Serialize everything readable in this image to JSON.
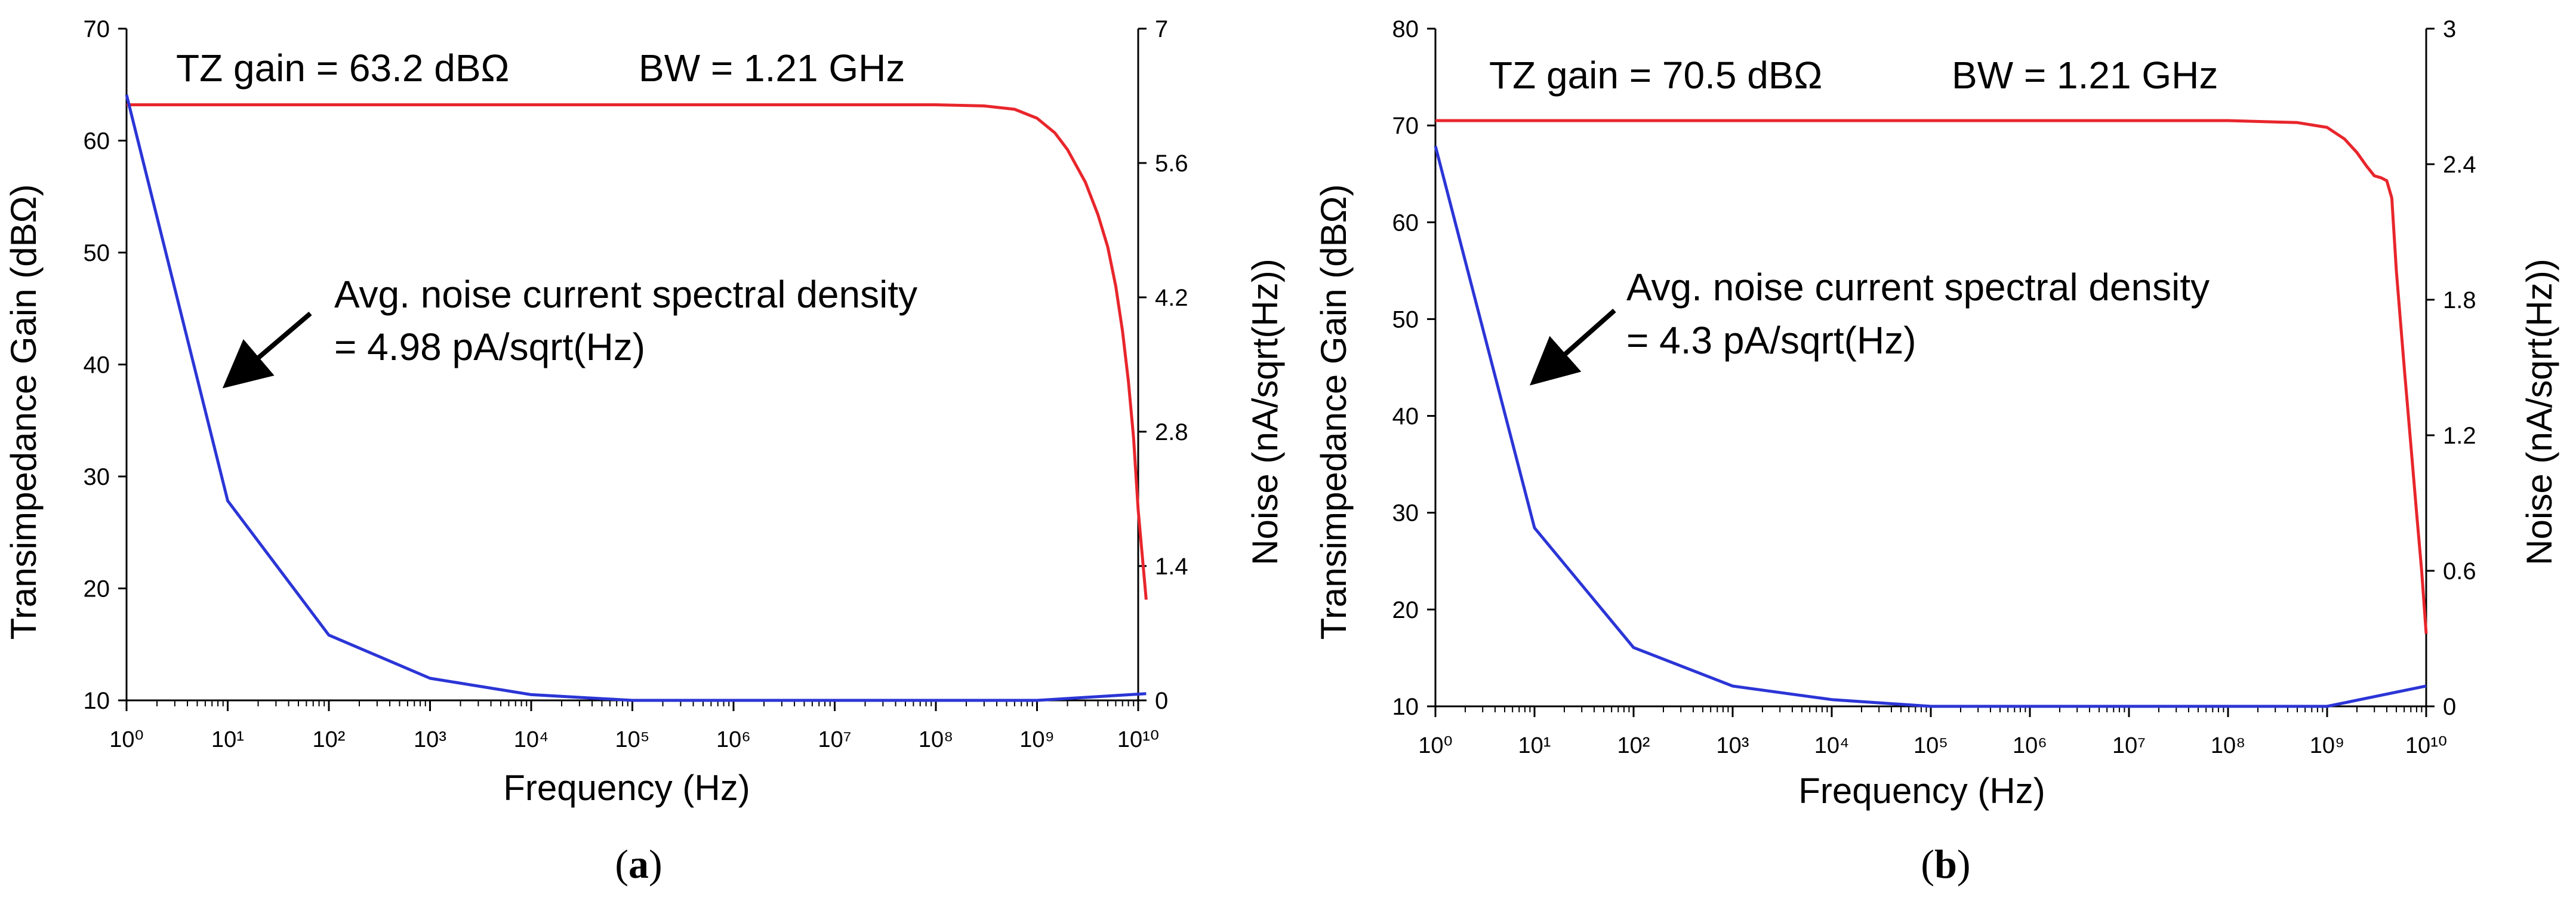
{
  "chart_data": [
    {
      "type": "line",
      "panel_label": "a",
      "xlabel": "Frequency (Hz)",
      "ylabel": "Transimpedance Gain (dBΩ)",
      "y2label": "Noise (nA/sqrt(Hz))",
      "xscale": "log",
      "xlim": [
        1,
        10000000000
      ],
      "xticks": [
        1,
        10,
        100,
        1000,
        10000,
        100000,
        1000000,
        10000000,
        100000000,
        1000000000,
        10000000000
      ],
      "ylim": [
        10,
        70
      ],
      "yticks": [
        10,
        20,
        30,
        40,
        50,
        60,
        70
      ],
      "y2lim": [
        0,
        7
      ],
      "y2ticks": [
        0,
        1.4,
        2.8,
        4.2,
        5.6,
        7
      ],
      "y2tick_labels": [
        "0",
        "1.4",
        "2.8",
        "4.2",
        "5.6",
        "7"
      ],
      "annotations": {
        "gain": "TZ gain = 63.2 dBΩ",
        "bw": "BW = 1.21 GHz",
        "noise_line1": "Avg. noise current spectral density",
        "noise_line2": "= 4.98 pA/sqrt(Hz)"
      },
      "series": [
        {
          "name": "Transimpedance Gain",
          "axis": "left",
          "color": "#e8262c",
          "x": [
            1,
            10,
            100,
            1000,
            10000,
            100000,
            1000000,
            10000000,
            100000000,
            300000000,
            600000000,
            1000000000,
            1500000000,
            2000000000,
            3000000000,
            4000000000,
            5000000000,
            6000000000,
            7000000000,
            8000000000,
            9000000000,
            10000000000,
            12000000000
          ],
          "values": [
            63.2,
            63.2,
            63.2,
            63.2,
            63.2,
            63.2,
            63.2,
            63.2,
            63.2,
            63.1,
            62.8,
            62.0,
            60.7,
            59.2,
            56.3,
            53.4,
            50.5,
            47.0,
            43.0,
            38.5,
            33.5,
            27.0,
            19.0
          ]
        },
        {
          "name": "Noise",
          "axis": "right",
          "color": "#2b35d6",
          "x": [
            1,
            10,
            100,
            1000,
            10000,
            100000,
            1000000,
            10000000,
            100000000,
            1000000000,
            12000000000
          ],
          "values": [
            6.31,
            2.08,
            0.68,
            0.23,
            0.06,
            0.0,
            0.0,
            0.0,
            0.0,
            0.0,
            0.07
          ]
        }
      ]
    },
    {
      "type": "line",
      "panel_label": "b",
      "xlabel": "Frequency (Hz)",
      "ylabel": "Transimpedance Gain (dBΩ)",
      "y2label": "Noise (nA/sqrt(Hz))",
      "xscale": "log",
      "xlim": [
        1,
        10000000000
      ],
      "xticks": [
        1,
        10,
        100,
        1000,
        10000,
        100000,
        1000000,
        10000000,
        100000000,
        1000000000,
        10000000000
      ],
      "ylim": [
        10,
        80
      ],
      "yticks": [
        10,
        20,
        30,
        40,
        50,
        60,
        70,
        80
      ],
      "y2lim": [
        0,
        3
      ],
      "y2ticks": [
        0,
        0.6,
        1.2,
        1.8,
        2.4,
        3
      ],
      "y2tick_labels": [
        "0",
        "0.6",
        "1.2",
        "1.8",
        "2.4",
        "3"
      ],
      "annotations": {
        "gain": "TZ gain = 70.5 dBΩ",
        "bw": "BW = 1.21 GHz",
        "noise_line1": "Avg. noise current spectral density",
        "noise_line2": "= 4.3 pA/sqrt(Hz)"
      },
      "series": [
        {
          "name": "Transimpedance Gain",
          "axis": "left",
          "color": "#e8262c",
          "x": [
            1,
            10,
            100,
            1000,
            10000,
            100000,
            1000000,
            10000000,
            100000000,
            500000000,
            1000000000,
            1500000000,
            2000000000,
            2500000000,
            3000000000,
            3500000000,
            4000000000,
            4500000000,
            5000000000,
            6000000000,
            7000000000,
            8000000000,
            9000000000,
            10000000000
          ],
          "values": [
            70.5,
            70.5,
            70.5,
            70.5,
            70.5,
            70.5,
            70.5,
            70.5,
            70.5,
            70.3,
            69.8,
            68.6,
            67.2,
            65.8,
            64.8,
            64.6,
            64.3,
            62.5,
            55.0,
            45.0,
            37.0,
            30.0,
            24.0,
            17.5
          ]
        },
        {
          "name": "Noise",
          "axis": "right",
          "color": "#2b35d6",
          "x": [
            1,
            10,
            100,
            1000,
            10000,
            100000,
            1000000,
            10000000,
            100000000,
            1000000000,
            10000000000
          ],
          "values": [
            2.48,
            0.79,
            0.26,
            0.09,
            0.03,
            0.0,
            0.0,
            0.0,
            0.0,
            0.0,
            0.09
          ]
        }
      ]
    }
  ]
}
